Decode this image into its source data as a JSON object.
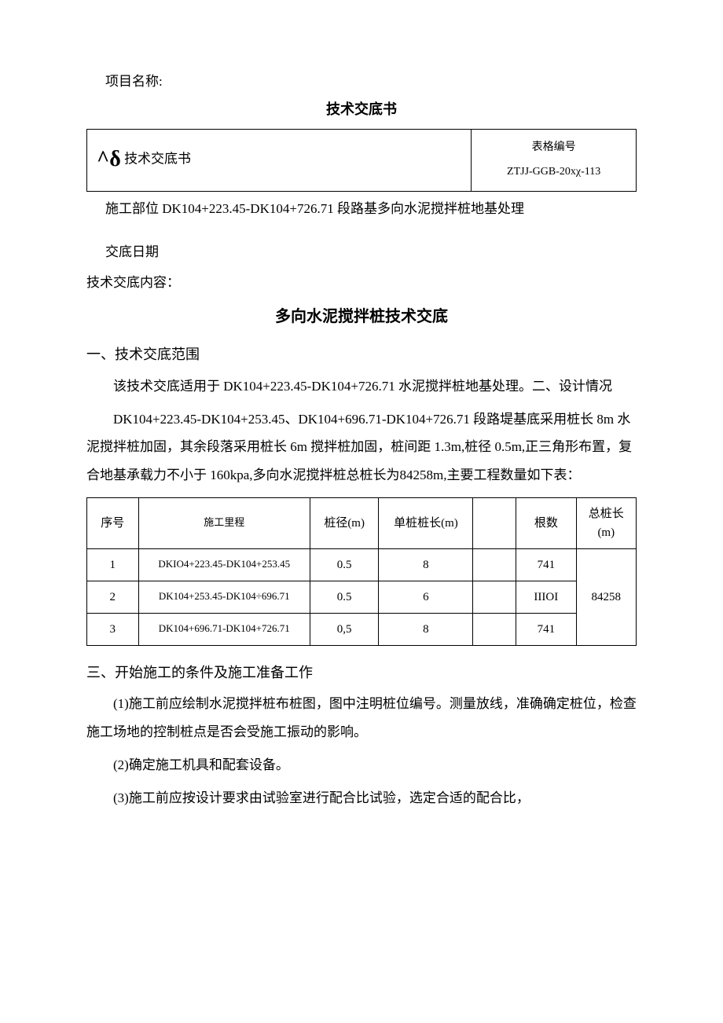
{
  "project_name_label": "项目名称:",
  "doc_title": "技术交底书",
  "header": {
    "caret_symbol": "^δ",
    "left_text": "技术交底书",
    "form_number_label": "表格编号",
    "form_number": "ZTJJ-GGB-20xχ-113"
  },
  "location_line": "施工部位 DK104+223.45-DK104+726.71 段路基多向水泥搅拌桩地基处理",
  "delivery_date_label": "交底日期",
  "content_label": "技术交底内容：",
  "main_title": "多向水泥搅拌桩技术交底",
  "section1_heading": "一、技术交底范围",
  "section1_body": "该技术交底适用于 DK104+223.45-DK104+726.71 水泥搅拌桩地基处理。二、设计情况",
  "section2_body": "DK104+223.45-DK104+253.45、DK104+696.71-DK104+726.71 段路堤基底采用桩长 8m 水泥搅拌桩加固，其余段落采用桩长 6m 搅拌桩加固，桩间距 1.3m,桩径 0.5m,正三角形布置，复合地基承载力不小于 160kpa,多向水泥搅拌桩总桩长为84258m,主要工程数量如下表：",
  "table": {
    "headers": {
      "seq": "序号",
      "mileage": "施工里程",
      "diameter": "桩径(m)",
      "single_len": "单桩桩长(m)",
      "empty": "",
      "count": "根数",
      "total": "总桩长(m)"
    },
    "rows": [
      {
        "seq": "1",
        "mileage": "DKIO4+223.45-DK104+253.45",
        "diameter": "0.5",
        "single_len": "8",
        "empty": "",
        "count": "741"
      },
      {
        "seq": "2",
        "mileage": "DK104+253.45-DK104÷696.71",
        "diameter": "0.5",
        "single_len": "6",
        "empty": "",
        "count": "IIIOI"
      },
      {
        "seq": "3",
        "mileage": "DK104+696.71-DK104+726.71",
        "diameter": "0,5",
        "single_len": "8",
        "empty": "",
        "count": "741"
      }
    ],
    "total_length": "84258"
  },
  "section3_heading": "三、开始施工的条件及施工准备工作",
  "prep_items": {
    "p1": "(1)施工前应绘制水泥搅拌桩布桩图，图中注明桩位编号。测量放线，准确确定桩位，检查施工场地的控制桩点是否会受施工振动的影响。",
    "p2": "(2)确定施工机具和配套设备。",
    "p3": "(3)施工前应按设计要求由试验室进行配合比试验，选定合适的配合比，"
  }
}
